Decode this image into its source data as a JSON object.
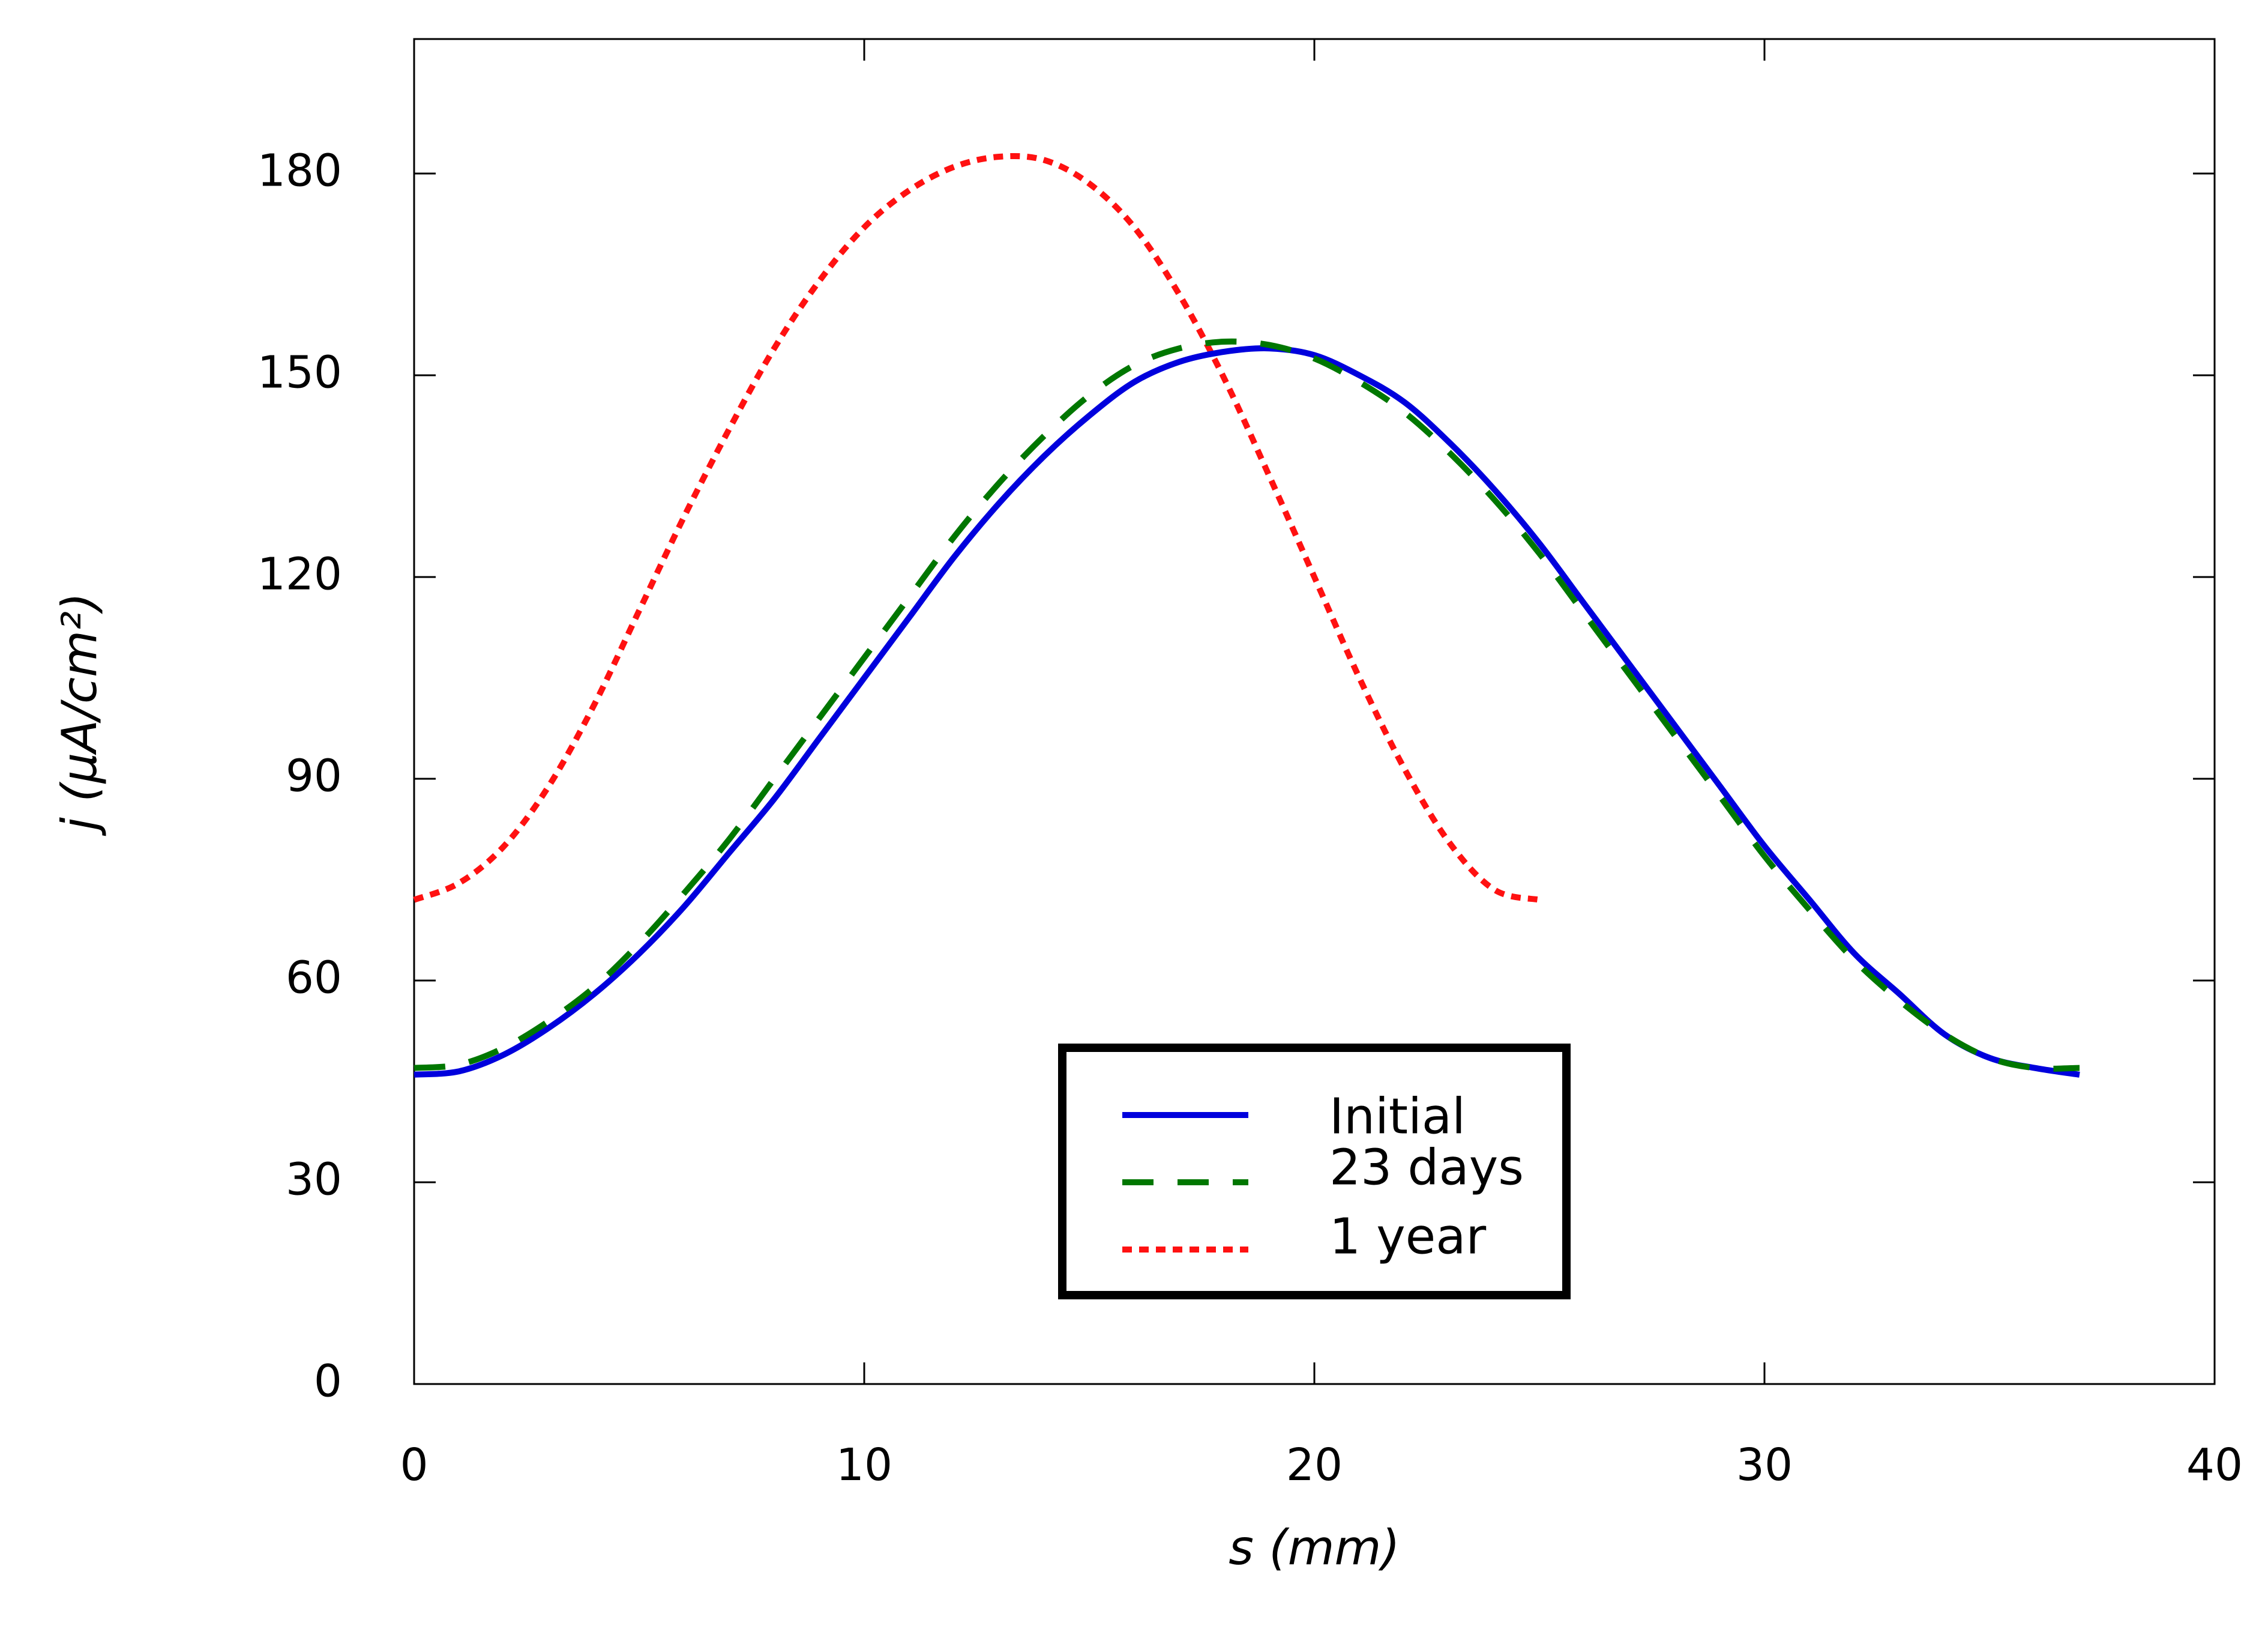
{
  "chart_data": {
    "type": "line",
    "title": "",
    "xlabel": "s (mm)",
    "ylabel": "j (μA/cm²)",
    "xlim": [
      0,
      40
    ],
    "ylim": [
      0,
      200
    ],
    "xticks": [
      0,
      10,
      20,
      30,
      40
    ],
    "yticks": [
      0,
      30,
      60,
      90,
      120,
      150,
      180
    ],
    "grid": false,
    "legend_position": "bottom-center",
    "series": [
      {
        "name": "Initial",
        "color": "#0000dd",
        "style": "solid",
        "points": [
          [
            0,
            46
          ],
          [
            1,
            46.5
          ],
          [
            2,
            49
          ],
          [
            3,
            53
          ],
          [
            4,
            58
          ],
          [
            5,
            64
          ],
          [
            6,
            71
          ],
          [
            7,
            79
          ],
          [
            8,
            87
          ],
          [
            9,
            96
          ],
          [
            10,
            105
          ],
          [
            11,
            114
          ],
          [
            12,
            123
          ],
          [
            13,
            131
          ],
          [
            14,
            138
          ],
          [
            15,
            144
          ],
          [
            16,
            149
          ],
          [
            17,
            152
          ],
          [
            18,
            153.5
          ],
          [
            19,
            154
          ],
          [
            20,
            153
          ],
          [
            21,
            150
          ],
          [
            22,
            146
          ],
          [
            23,
            140
          ],
          [
            24,
            133
          ],
          [
            25,
            125
          ],
          [
            26,
            116
          ],
          [
            27,
            107
          ],
          [
            28,
            98
          ],
          [
            29,
            89
          ],
          [
            30,
            80
          ],
          [
            31,
            72
          ],
          [
            32,
            64
          ],
          [
            33,
            58
          ],
          [
            34,
            52
          ],
          [
            35,
            48.5
          ],
          [
            36,
            47
          ],
          [
            37,
            46
          ]
        ]
      },
      {
        "name": "23 days",
        "color": "#007700",
        "style": "dashed",
        "points": [
          [
            0,
            47
          ],
          [
            1,
            47.5
          ],
          [
            2,
            50
          ],
          [
            3,
            54
          ],
          [
            4,
            59
          ],
          [
            5,
            65.5
          ],
          [
            6,
            73
          ],
          [
            7,
            81
          ],
          [
            8,
            90
          ],
          [
            9,
            99
          ],
          [
            10,
            108
          ],
          [
            11,
            117
          ],
          [
            12,
            126
          ],
          [
            13,
            134
          ],
          [
            14,
            141
          ],
          [
            15,
            147
          ],
          [
            16,
            151.5
          ],
          [
            17,
            154
          ],
          [
            18,
            155
          ],
          [
            19,
            154.5
          ],
          [
            20,
            152.5
          ],
          [
            21,
            149
          ],
          [
            22,
            144.5
          ],
          [
            23,
            138.5
          ],
          [
            24,
            131.5
          ],
          [
            25,
            123.5
          ],
          [
            26,
            114.5
          ],
          [
            27,
            105.5
          ],
          [
            28,
            96.5
          ],
          [
            29,
            87.5
          ],
          [
            30,
            78.5
          ],
          [
            31,
            70.5
          ],
          [
            32,
            63
          ],
          [
            33,
            57
          ],
          [
            34,
            52
          ],
          [
            35,
            48.5
          ],
          [
            36,
            47
          ],
          [
            37,
            47
          ]
        ]
      },
      {
        "name": "1 year",
        "color": "#ff1111",
        "style": "dotted",
        "points": [
          [
            0,
            72
          ],
          [
            1,
            74.5
          ],
          [
            2,
            80
          ],
          [
            3,
            89
          ],
          [
            4,
            101
          ],
          [
            5,
            115
          ],
          [
            6,
            129
          ],
          [
            7,
            142
          ],
          [
            8,
            154
          ],
          [
            9,
            164
          ],
          [
            10,
            172
          ],
          [
            11,
            177.5
          ],
          [
            12,
            181
          ],
          [
            13,
            182.5
          ],
          [
            14,
            182
          ],
          [
            15,
            178.5
          ],
          [
            16,
            172
          ],
          [
            17,
            162
          ],
          [
            18,
            149.5
          ],
          [
            19,
            135
          ],
          [
            20,
            120
          ],
          [
            21,
            105
          ],
          [
            22,
            91.5
          ],
          [
            23,
            80.5
          ],
          [
            24,
            73.5
          ],
          [
            25,
            72
          ]
        ]
      }
    ]
  }
}
